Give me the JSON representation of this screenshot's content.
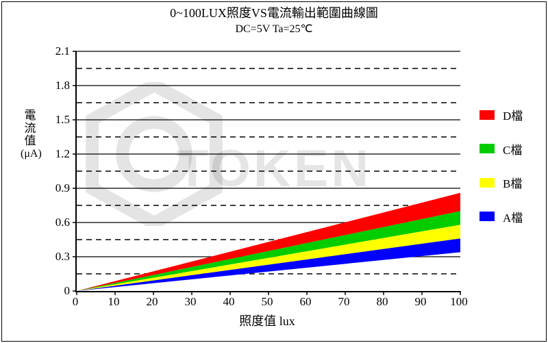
{
  "title": "0~100LUX照度VS電流輸出範圍曲線圖",
  "subtitle": "DC=5V   Ta=25℃",
  "xlabel": "照度值   lux",
  "ylabel_chars": [
    "電",
    "流",
    "值"
  ],
  "ylabel_unit": "(μA)",
  "watermark": "TOKEN",
  "chart": {
    "type": "area-range",
    "background_color": "#ffffff",
    "grid_color": "#000000",
    "axis_color": "#000000",
    "xmin": 0,
    "xmax": 100,
    "xstep": 10,
    "ymin": 0,
    "ymax": 2.1,
    "ystep": 0.3,
    "minor_ystep": 0.15,
    "title_fontsize": 18,
    "label_fontsize": 18,
    "tick_fontsize": 17,
    "series": [
      {
        "name": "D檔",
        "color": "#ff0000",
        "y_low_at_xmax": 0.7,
        "y_high_at_xmax": 0.86
      },
      {
        "name": "C檔",
        "color": "#00cc00",
        "y_low_at_xmax": 0.58,
        "y_high_at_xmax": 0.7
      },
      {
        "name": "B檔",
        "color": "#ffff00",
        "y_low_at_xmax": 0.46,
        "y_high_at_xmax": 0.58
      },
      {
        "name": "A檔",
        "color": "#0000ff",
        "y_low_at_xmax": 0.34,
        "y_high_at_xmax": 0.46
      }
    ],
    "legend_order": [
      "D檔",
      "C檔",
      "B檔",
      "A檔"
    ]
  }
}
